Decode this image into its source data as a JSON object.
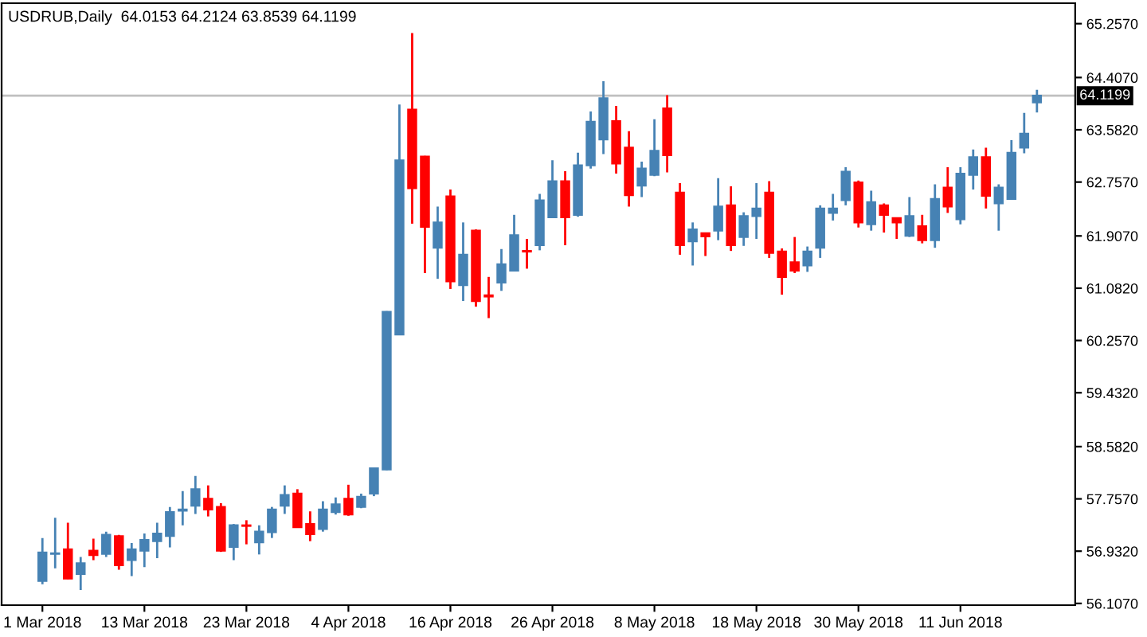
{
  "chart_data": {
    "type": "candlestick",
    "title": "USDRUB,Daily  64.0153 64.2124 63.8539 64.1199",
    "categories": [
      "1 Mar 2018",
      null,
      null,
      null,
      null,
      null,
      null,
      null,
      "13 Mar 2018",
      null,
      null,
      null,
      null,
      null,
      null,
      null,
      "23 Mar 2018",
      null,
      null,
      null,
      null,
      null,
      null,
      null,
      "4 Apr 2018",
      null,
      null,
      null,
      null,
      null,
      null,
      null,
      "16 Apr 2018",
      null,
      null,
      null,
      null,
      null,
      null,
      null,
      "26 Apr 2018",
      null,
      null,
      null,
      null,
      null,
      null,
      null,
      "8 May 2018",
      null,
      null,
      null,
      null,
      null,
      null,
      null,
      "18 May 2018",
      null,
      null,
      null,
      null,
      null,
      null,
      null,
      "30 May 2018",
      null,
      null,
      null,
      null,
      null,
      null,
      null,
      "11 Jun 2018",
      null,
      null,
      null,
      null,
      null,
      null
    ],
    "ohlc": [
      [
        56.46,
        57.14,
        56.41,
        56.91
      ],
      [
        56.89,
        57.46,
        56.66,
        56.9
      ],
      [
        56.96,
        57.38,
        56.49,
        56.5
      ],
      [
        56.57,
        56.84,
        56.32,
        56.74
      ],
      [
        56.94,
        57.13,
        56.79,
        56.87
      ],
      [
        56.89,
        57.24,
        56.84,
        57.19
      ],
      [
        57.17,
        57.19,
        56.64,
        56.71
      ],
      [
        56.79,
        57.06,
        56.54,
        56.96
      ],
      [
        56.94,
        57.21,
        56.68,
        57.11
      ],
      [
        57.09,
        57.38,
        56.82,
        57.21
      ],
      [
        57.17,
        57.63,
        56.99,
        57.55
      ],
      [
        57.57,
        57.88,
        57.34,
        57.59
      ],
      [
        57.65,
        58.12,
        57.52,
        57.91
      ],
      [
        57.76,
        57.97,
        57.48,
        57.59
      ],
      [
        57.63,
        57.69,
        56.92,
        56.94
      ],
      [
        57.0,
        57.36,
        56.79,
        57.34
      ],
      [
        57.34,
        57.42,
        57.04,
        57.33
      ],
      [
        57.07,
        57.34,
        56.88,
        57.24
      ],
      [
        57.23,
        57.63,
        57.14,
        57.59
      ],
      [
        57.65,
        57.97,
        57.52,
        57.82
      ],
      [
        57.84,
        57.91,
        57.3,
        57.31
      ],
      [
        57.36,
        57.56,
        57.09,
        57.2
      ],
      [
        57.28,
        57.72,
        57.24,
        57.59
      ],
      [
        57.55,
        57.78,
        57.51,
        57.67
      ],
      [
        57.76,
        57.98,
        57.49,
        57.51
      ],
      [
        57.63,
        57.84,
        57.61,
        57.79
      ],
      [
        57.84,
        58.24,
        57.8,
        58.24
      ],
      [
        58.22,
        60.72,
        58.21,
        60.71
      ],
      [
        60.35,
        63.98,
        60.34,
        63.1
      ],
      [
        63.9,
        65.11,
        62.1,
        62.66
      ],
      [
        63.16,
        63.17,
        61.32,
        62.05
      ],
      [
        61.72,
        62.37,
        61.23,
        62.12
      ],
      [
        62.53,
        62.64,
        61.07,
        61.19
      ],
      [
        61.13,
        62.12,
        60.88,
        61.61
      ],
      [
        61.99,
        62.01,
        60.79,
        60.88
      ],
      [
        60.97,
        61.26,
        60.61,
        60.95
      ],
      [
        61.17,
        61.7,
        61.04,
        61.46
      ],
      [
        61.36,
        62.24,
        61.35,
        61.92
      ],
      [
        61.67,
        61.86,
        61.39,
        61.66
      ],
      [
        61.76,
        62.57,
        61.68,
        62.47
      ],
      [
        62.2,
        63.1,
        62.19,
        62.77
      ],
      [
        62.77,
        62.93,
        61.76,
        62.2
      ],
      [
        62.24,
        63.22,
        62.21,
        63.02
      ],
      [
        63.02,
        63.87,
        62.97,
        63.71
      ],
      [
        63.43,
        64.35,
        63.2,
        64.08
      ],
      [
        63.72,
        63.96,
        62.89,
        63.05
      ],
      [
        63.3,
        63.56,
        62.37,
        62.55
      ],
      [
        62.7,
        63.08,
        62.52,
        62.97
      ],
      [
        62.87,
        63.75,
        62.85,
        63.25
      ],
      [
        63.92,
        64.13,
        62.91,
        63.18
      ],
      [
        62.59,
        62.74,
        61.61,
        61.76
      ],
      [
        61.82,
        62.12,
        61.44,
        62.01
      ],
      [
        61.95,
        61.96,
        61.59,
        61.9
      ],
      [
        61.99,
        62.82,
        61.84,
        62.37
      ],
      [
        62.39,
        62.69,
        61.67,
        61.76
      ],
      [
        61.89,
        62.28,
        61.75,
        62.22
      ],
      [
        62.22,
        62.74,
        61.86,
        62.34
      ],
      [
        62.59,
        62.77,
        61.56,
        61.64
      ],
      [
        61.66,
        61.71,
        60.98,
        61.26
      ],
      [
        61.49,
        61.89,
        61.32,
        61.36
      ],
      [
        61.44,
        61.74,
        61.34,
        61.66
      ],
      [
        61.72,
        62.39,
        61.56,
        62.34
      ],
      [
        62.27,
        62.57,
        62.15,
        62.34
      ],
      [
        62.47,
        62.99,
        62.39,
        62.92
      ],
      [
        62.75,
        62.78,
        62.04,
        62.12
      ],
      [
        62.09,
        62.62,
        61.99,
        62.44
      ],
      [
        62.39,
        62.42,
        61.96,
        62.24
      ],
      [
        62.19,
        62.2,
        61.86,
        62.12
      ],
      [
        61.91,
        62.52,
        61.89,
        62.22
      ],
      [
        62.06,
        62.24,
        61.79,
        61.84
      ],
      [
        61.84,
        62.72,
        61.72,
        62.49
      ],
      [
        62.67,
        62.99,
        62.27,
        62.37
      ],
      [
        62.17,
        62.99,
        62.09,
        62.89
      ],
      [
        62.87,
        63.27,
        62.64,
        63.15
      ],
      [
        63.15,
        63.3,
        62.34,
        62.54
      ],
      [
        62.42,
        62.72,
        61.99,
        62.67
      ],
      [
        62.49,
        63.42,
        62.48,
        63.22
      ],
      [
        63.3,
        63.85,
        63.21,
        63.52
      ],
      [
        64.0153,
        64.2124,
        63.8539,
        64.1199
      ]
    ],
    "colors": [
      "#4682b4",
      "#4682b4",
      "#ff0000",
      "#4682b4",
      "#ff0000",
      "#4682b4",
      "#ff0000",
      "#4682b4",
      "#4682b4",
      "#4682b4",
      "#4682b4",
      "#4682b4",
      "#4682b4",
      "#ff0000",
      "#ff0000",
      "#4682b4",
      "#ff0000",
      "#4682b4",
      "#4682b4",
      "#4682b4",
      "#ff0000",
      "#ff0000",
      "#4682b4",
      "#4682b4",
      "#ff0000",
      "#4682b4",
      "#4682b4",
      "#4682b4",
      "#4682b4",
      "#ff0000",
      "#ff0000",
      "#4682b4",
      "#ff0000",
      "#4682b4",
      "#ff0000",
      "#ff0000",
      "#4682b4",
      "#4682b4",
      "#ff0000",
      "#4682b4",
      "#4682b4",
      "#ff0000",
      "#4682b4",
      "#4682b4",
      "#4682b4",
      "#ff0000",
      "#ff0000",
      "#4682b4",
      "#4682b4",
      "#ff0000",
      "#ff0000",
      "#4682b4",
      "#ff0000",
      "#4682b4",
      "#ff0000",
      "#4682b4",
      "#4682b4",
      "#ff0000",
      "#ff0000",
      "#ff0000",
      "#4682b4",
      "#4682b4",
      "#4682b4",
      "#4682b4",
      "#ff0000",
      "#4682b4",
      "#ff0000",
      "#ff0000",
      "#4682b4",
      "#ff0000",
      "#4682b4",
      "#ff0000",
      "#4682b4",
      "#4682b4",
      "#ff0000",
      "#4682b4",
      "#4682b4",
      "#4682b4",
      "#4682b4"
    ],
    "ylim": [
      56.08,
      65.58
    ],
    "yticks": [
      {
        "value": 56.107,
        "label": "56.1070"
      },
      {
        "value": 56.932,
        "label": "56.9320"
      },
      {
        "value": 57.757,
        "label": "57.7570"
      },
      {
        "value": 58.582,
        "label": "58.5820"
      },
      {
        "value": 59.432,
        "label": "59.4320"
      },
      {
        "value": 60.257,
        "label": "60.2570"
      },
      {
        "value": 61.082,
        "label": "61.0820"
      },
      {
        "value": 61.907,
        "label": "61.9070"
      },
      {
        "value": 62.757,
        "label": "62.7570"
      },
      {
        "value": 63.582,
        "label": "63.5820"
      },
      {
        "value": 64.407,
        "label": "64.4070"
      },
      {
        "value": 65.257,
        "label": "65.2570"
      }
    ],
    "ref_lines": [
      {
        "axis": "y",
        "value": 64.1199,
        "label": "64.1199",
        "color": "#c0c0c0"
      }
    ]
  }
}
